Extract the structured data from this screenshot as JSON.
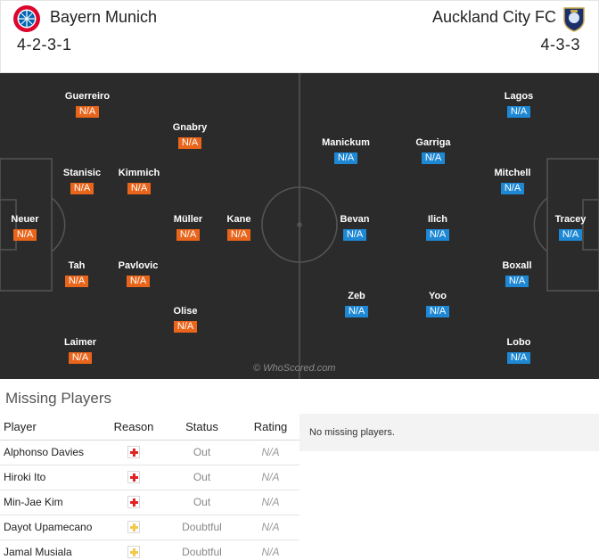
{
  "match": {
    "home": {
      "name": "Bayern Munich",
      "formation": "4-2-3-1",
      "logo": "bayern-crest-icon",
      "color": "#dc052d"
    },
    "away": {
      "name": "Auckland City FC",
      "formation": "4-3-3",
      "logo": "auckland-crest-icon",
      "color": "#1b2f6b"
    }
  },
  "pitch": {
    "watermark": "© WhoScored.com",
    "home_rating_color": "#e8651b",
    "away_rating_color": "#1e88d4",
    "home_players": [
      {
        "name": "Guerreiro",
        "rating": "N/A"
      },
      {
        "name": "Gnabry",
        "rating": "N/A"
      },
      {
        "name": "Stanisic",
        "rating": "N/A"
      },
      {
        "name": "Kimmich",
        "rating": "N/A"
      },
      {
        "name": "Neuer",
        "rating": "N/A"
      },
      {
        "name": "Müller",
        "rating": "N/A"
      },
      {
        "name": "Kane",
        "rating": "N/A"
      },
      {
        "name": "Tah",
        "rating": "N/A"
      },
      {
        "name": "Pavlovic",
        "rating": "N/A"
      },
      {
        "name": "Olise",
        "rating": "N/A"
      },
      {
        "name": "Laimer",
        "rating": "N/A"
      }
    ],
    "away_players": [
      {
        "name": "Lagos",
        "rating": "N/A"
      },
      {
        "name": "Manickum",
        "rating": "N/A"
      },
      {
        "name": "Garriga",
        "rating": "N/A"
      },
      {
        "name": "Mitchell",
        "rating": "N/A"
      },
      {
        "name": "Bevan",
        "rating": "N/A"
      },
      {
        "name": "Ilich",
        "rating": "N/A"
      },
      {
        "name": "Tracey",
        "rating": "N/A"
      },
      {
        "name": "Boxall",
        "rating": "N/A"
      },
      {
        "name": "Zeb",
        "rating": "N/A"
      },
      {
        "name": "Yoo",
        "rating": "N/A"
      },
      {
        "name": "Lobo",
        "rating": "N/A"
      }
    ]
  },
  "missing": {
    "title": "Missing Players",
    "headers": {
      "player": "Player",
      "reason": "Reason",
      "status": "Status",
      "rating": "Rating"
    },
    "rows": [
      {
        "player": "Alphonso Davies",
        "reason_icon": "injury-icon",
        "reason_color": "#e02424",
        "status": "Out",
        "rating": "N/A"
      },
      {
        "player": "Hiroki Ito",
        "reason_icon": "injury-icon",
        "reason_color": "#e02424",
        "status": "Out",
        "rating": "N/A"
      },
      {
        "player": "Min-Jae Kim",
        "reason_icon": "injury-icon",
        "reason_color": "#e02424",
        "status": "Out",
        "rating": "N/A"
      },
      {
        "player": "Dayot Upamecano",
        "reason_icon": "doubtful-icon",
        "reason_color": "#f2c94c",
        "status": "Doubtful",
        "rating": "N/A"
      },
      {
        "player": "Jamal Musiala",
        "reason_icon": "doubtful-icon",
        "reason_color": "#f2c94c",
        "status": "Doubtful",
        "rating": "N/A"
      }
    ],
    "away_empty_text": "No missing players."
  }
}
